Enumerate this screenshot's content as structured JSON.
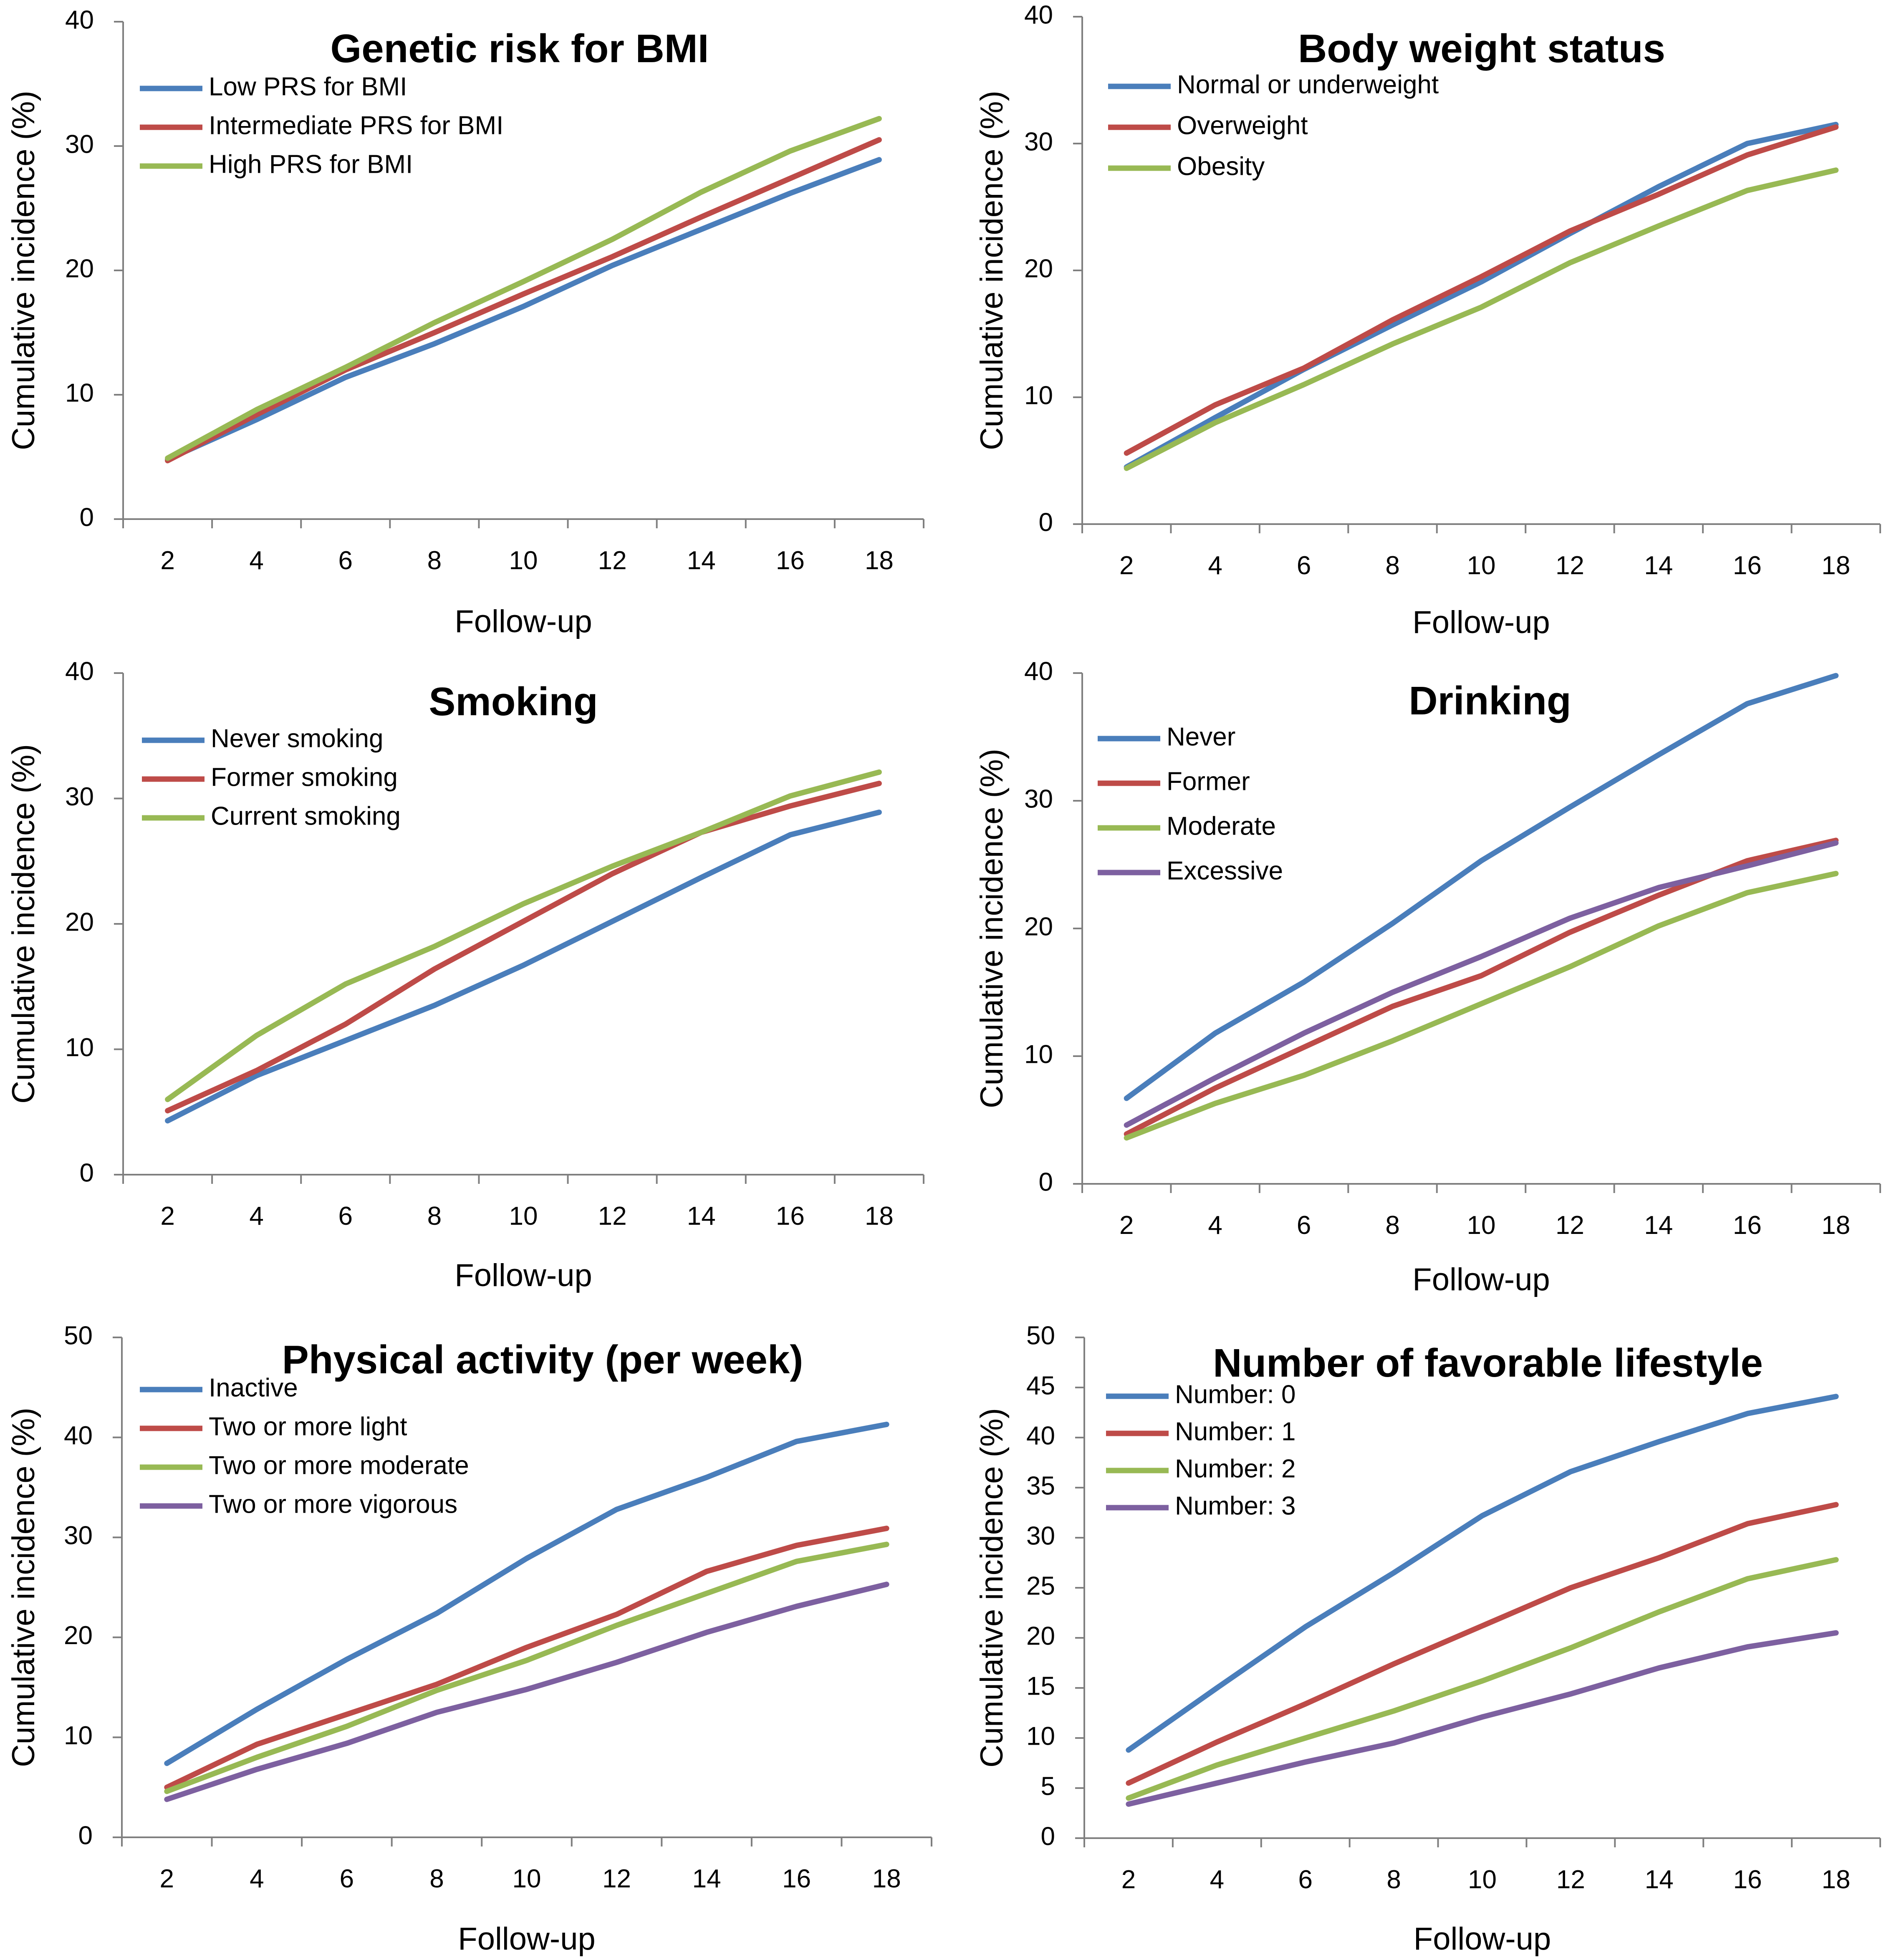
{
  "colors": {
    "blue": "#4a7ebb",
    "red": "#be4b48",
    "green": "#98b954",
    "purple": "#7d60a0"
  },
  "chart_data": [
    {
      "type": "line",
      "title": "Genetic risk for BMI",
      "xlabel": "Follow-up",
      "ylabel": "Cumulative incidence (%)",
      "x": [
        2,
        4,
        6,
        8,
        10,
        12,
        14,
        16,
        18
      ],
      "ylim": [
        0,
        40
      ],
      "yticks": [
        0,
        10,
        20,
        30,
        40
      ],
      "legend_position": "top-left",
      "series": [
        {
          "name": "Low PRS for BMI",
          "color": "#4a7ebb",
          "values": [
            4.8,
            8.0,
            11.4,
            14.1,
            17.1,
            20.4,
            23.3,
            26.2,
            28.9
          ]
        },
        {
          "name": "Intermediate PRS for BMI",
          "color": "#be4b48",
          "values": [
            4.7,
            8.4,
            12.0,
            15.0,
            18.1,
            21.1,
            24.3,
            27.4,
            30.5
          ]
        },
        {
          "name": "High PRS for BMI",
          "color": "#98b954",
          "values": [
            4.9,
            8.8,
            12.2,
            15.8,
            19.1,
            22.5,
            26.3,
            29.6,
            32.2
          ]
        }
      ]
    },
    {
      "type": "line",
      "title": "Body weight status",
      "xlabel": "Follow-up",
      "ylabel": "Cumulative incidence (%)",
      "x": [
        2,
        4,
        6,
        8,
        10,
        12,
        14,
        16,
        18
      ],
      "ylim": [
        0,
        40
      ],
      "yticks": [
        0,
        10,
        20,
        30,
        40
      ],
      "legend_position": "top-left",
      "series": [
        {
          "name": "Normal or underweight",
          "color": "#4a7ebb",
          "values": [
            4.5,
            8.4,
            12.2,
            15.7,
            19.1,
            22.9,
            26.6,
            30.0,
            31.5
          ]
        },
        {
          "name": "Overweight",
          "color": "#be4b48",
          "values": [
            5.6,
            9.4,
            12.3,
            16.1,
            19.5,
            23.1,
            26.0,
            29.1,
            31.3
          ]
        },
        {
          "name": "Obesity",
          "color": "#98b954",
          "values": [
            4.4,
            8.0,
            11.0,
            14.2,
            17.1,
            20.6,
            23.5,
            26.3,
            27.9
          ]
        }
      ]
    },
    {
      "type": "line",
      "title": "Smoking",
      "xlabel": "Follow-up",
      "ylabel": "Cumulative incidence (%)",
      "x": [
        2,
        4,
        6,
        8,
        10,
        12,
        14,
        16,
        18
      ],
      "ylim": [
        0,
        40
      ],
      "yticks": [
        0,
        10,
        20,
        30,
        40
      ],
      "legend_position": "top-left",
      "series": [
        {
          "name": "Never smoking",
          "color": "#4a7ebb",
          "values": [
            4.3,
            7.9,
            10.7,
            13.5,
            16.7,
            20.2,
            23.7,
            27.1,
            28.9
          ]
        },
        {
          "name": "Former smoking",
          "color": "#be4b48",
          "values": [
            5.1,
            8.3,
            12.0,
            16.4,
            20.2,
            24.0,
            27.3,
            29.4,
            31.2
          ]
        },
        {
          "name": "Current smoking",
          "color": "#98b954",
          "values": [
            6.0,
            11.1,
            15.2,
            18.2,
            21.6,
            24.6,
            27.3,
            30.2,
            32.1
          ]
        }
      ]
    },
    {
      "type": "line",
      "title": "Drinking",
      "xlabel": "Follow-up",
      "ylabel": "Cumulative incidence (%)",
      "x": [
        2,
        4,
        6,
        8,
        10,
        12,
        14,
        16,
        18
      ],
      "ylim": [
        0,
        40
      ],
      "yticks": [
        0,
        10,
        20,
        30,
        40
      ],
      "legend_position": "top-left",
      "series": [
        {
          "name": "Never",
          "color": "#4a7ebb",
          "values": [
            6.7,
            11.8,
            15.8,
            20.4,
            25.3,
            29.5,
            33.6,
            37.6,
            39.8
          ]
        },
        {
          "name": "Former",
          "color": "#be4b48",
          "values": [
            3.9,
            7.5,
            10.7,
            13.9,
            16.3,
            19.7,
            22.6,
            25.3,
            26.9
          ]
        },
        {
          "name": "Moderate",
          "color": "#98b954",
          "values": [
            3.6,
            6.3,
            8.5,
            11.2,
            14.1,
            17.0,
            20.2,
            22.8,
            24.3
          ]
        },
        {
          "name": "Excessive",
          "color": "#7d60a0",
          "values": [
            4.6,
            8.3,
            11.8,
            15.0,
            17.8,
            20.8,
            23.2,
            24.9,
            26.7
          ]
        }
      ]
    },
    {
      "type": "line",
      "title": "Physical activity (per week)",
      "xlabel": "Follow-up",
      "ylabel": "Cumulative incidence (%)",
      "x": [
        2,
        4,
        6,
        8,
        10,
        12,
        14,
        16,
        18
      ],
      "ylim": [
        0,
        50
      ],
      "yticks": [
        0,
        10,
        20,
        30,
        40,
        50
      ],
      "legend_position": "top-left",
      "series": [
        {
          "name": "Inactive",
          "color": "#4a7ebb",
          "values": [
            7.4,
            12.8,
            17.8,
            22.4,
            27.9,
            32.8,
            36.0,
            39.6,
            41.3
          ]
        },
        {
          "name": "Two or more light",
          "color": "#be4b48",
          "values": [
            5.0,
            9.3,
            12.3,
            15.3,
            19.0,
            22.3,
            26.6,
            29.2,
            30.9
          ]
        },
        {
          "name": "Two or more moderate",
          "color": "#98b954",
          "values": [
            4.6,
            8.0,
            11.1,
            14.7,
            17.7,
            21.2,
            24.4,
            27.6,
            29.3
          ]
        },
        {
          "name": "Two or more vigorous",
          "color": "#7d60a0",
          "values": [
            3.8,
            6.8,
            9.4,
            12.5,
            14.8,
            17.5,
            20.5,
            23.1,
            25.3
          ]
        }
      ]
    },
    {
      "type": "line",
      "title": "Number of favorable lifestyle",
      "xlabel": "Follow-up",
      "ylabel": "Cumulative incidence (%)",
      "x": [
        2,
        4,
        6,
        8,
        10,
        12,
        14,
        16,
        18
      ],
      "ylim": [
        0,
        50
      ],
      "yticks": [
        0,
        5,
        10,
        15,
        20,
        25,
        30,
        35,
        40,
        45,
        50
      ],
      "legend_position": "top-left",
      "series": [
        {
          "name": "Number: 0",
          "color": "#4a7ebb",
          "values": [
            8.8,
            15.0,
            21.1,
            26.5,
            32.2,
            36.6,
            39.6,
            42.4,
            44.1
          ]
        },
        {
          "name": "Number: 1",
          "color": "#be4b48",
          "values": [
            5.5,
            9.6,
            13.4,
            17.4,
            21.2,
            25.0,
            28.0,
            31.4,
            33.3
          ]
        },
        {
          "name": "Number: 2",
          "color": "#98b954",
          "values": [
            4.0,
            7.3,
            10.0,
            12.7,
            15.7,
            19.0,
            22.6,
            25.9,
            27.8
          ]
        },
        {
          "name": "Number: 3",
          "color": "#7d60a0",
          "values": [
            3.4,
            5.5,
            7.6,
            9.5,
            12.1,
            14.4,
            17.0,
            19.1,
            20.5
          ]
        }
      ]
    }
  ]
}
